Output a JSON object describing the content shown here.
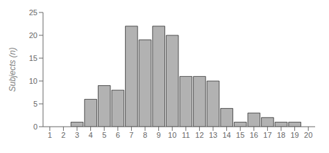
{
  "chart_data": {
    "type": "bar",
    "x": [
      3,
      4,
      5,
      6,
      7,
      8,
      9,
      10,
      11,
      12,
      13,
      14,
      15,
      16,
      17,
      18,
      19
    ],
    "values": [
      1,
      6,
      9,
      8,
      22,
      19,
      22,
      20,
      11,
      11,
      10,
      4,
      1,
      3,
      2,
      1,
      1
    ],
    "color": "#b2b2b2",
    "ylabel": "Subjects (n)",
    "xlim": [
      0.5,
      20.5
    ],
    "xticks": [
      1,
      2,
      3,
      4,
      5,
      6,
      7,
      8,
      9,
      10,
      11,
      12,
      13,
      14,
      15,
      16,
      17,
      18,
      19,
      20
    ],
    "ylim": [
      0,
      25
    ],
    "yticks": [
      0,
      5,
      10,
      15,
      20,
      25
    ],
    "grid": false
  }
}
